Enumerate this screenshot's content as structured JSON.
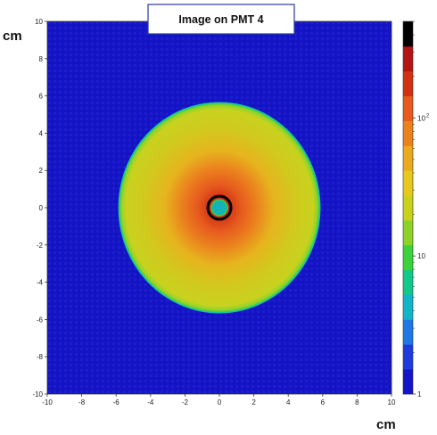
{
  "chart_data": {
    "type": "heatmap",
    "title": "Image on PMT 4",
    "xlabel": "cm",
    "ylabel": "cm",
    "xlim": [
      -10,
      10
    ],
    "ylim": [
      -10,
      10
    ],
    "x_ticks": [
      -10,
      -8,
      -6,
      -4,
      -2,
      0,
      2,
      4,
      6,
      8,
      10
    ],
    "y_ticks": [
      -10,
      -8,
      -6,
      -4,
      -2,
      0,
      2,
      4,
      6,
      8,
      10
    ],
    "color_scale": "log",
    "colorbar": {
      "range": [
        1,
        500
      ],
      "tick_labels": [
        {
          "value": 1,
          "label": "1"
        },
        {
          "value": 10,
          "label": "10"
        },
        {
          "value": 100,
          "label": "10",
          "exponent": "2"
        }
      ],
      "colors": [
        "#1414c8",
        "#1e3cdc",
        "#1e78e6",
        "#14b4c8",
        "#14c88c",
        "#3cd23c",
        "#8cd228",
        "#c8d21e",
        "#e6c81e",
        "#ebaa1e",
        "#eb821e",
        "#e65a1e",
        "#d23214",
        "#b41414",
        "#000000"
      ]
    },
    "features": {
      "background_value": 1,
      "disk": {
        "center": [
          0,
          0
        ],
        "radius_x": 5.8,
        "radius_y": 5.6,
        "edge_value": 60,
        "inner_value": 100,
        "center_value": 300
      },
      "central_hole": {
        "center": [
          0,
          0
        ],
        "radius": 0.45,
        "value": 12
      },
      "hot_ring": {
        "center": [
          0,
          0
        ],
        "radius": 0.65,
        "value": 500
      }
    }
  }
}
